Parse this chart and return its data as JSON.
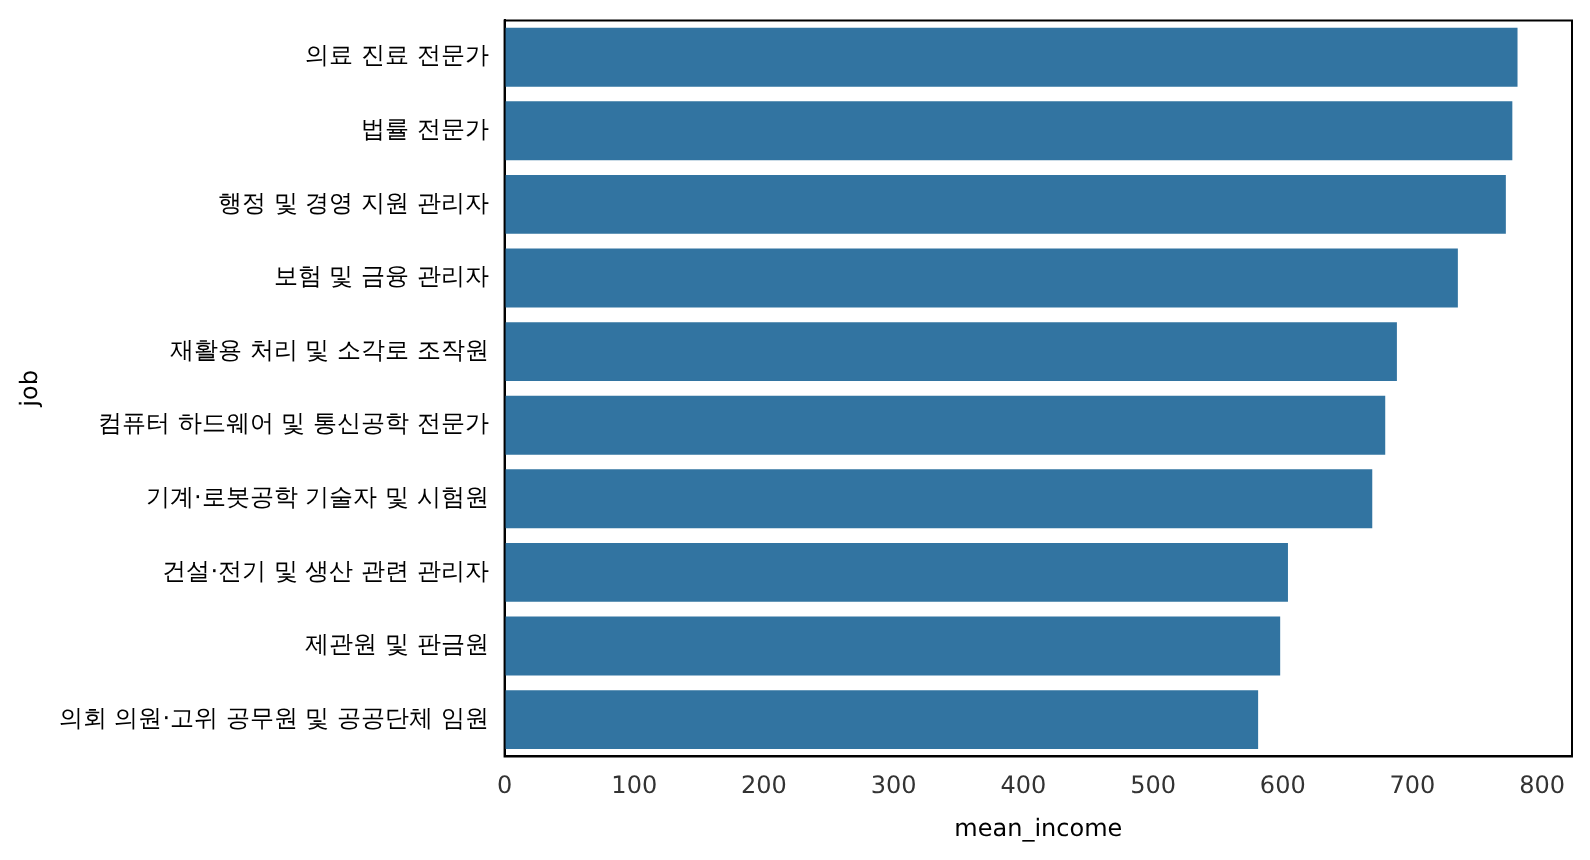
{
  "chart_data": {
    "type": "bar",
    "orientation": "horizontal",
    "xlabel": "mean_income",
    "ylabel": "job",
    "categories": [
      "의료 진료 전문가",
      "법률 전문가",
      "행정 및 경영 지원 관리자",
      "보험 및 금융 관리자",
      "재활용 처리 및 소각로 조작원",
      "컴퓨터 하드웨어 및 통신공학 전문가",
      "기계·로봇공학 기술자 및 시험원",
      "건설·전기 및 생산 관련 관리자",
      "제관원 및 판금원",
      "의회 의원·고위 공무원 및 공공단체 임원"
    ],
    "values": [
      781,
      777,
      772,
      735,
      688,
      679,
      669,
      604,
      598,
      581
    ],
    "color": "#3274a1",
    "xlim": [
      0,
      823
    ],
    "xticks": [
      0,
      100,
      200,
      300,
      400,
      500,
      600,
      700,
      800
    ],
    "grid": false,
    "legend": false
  }
}
